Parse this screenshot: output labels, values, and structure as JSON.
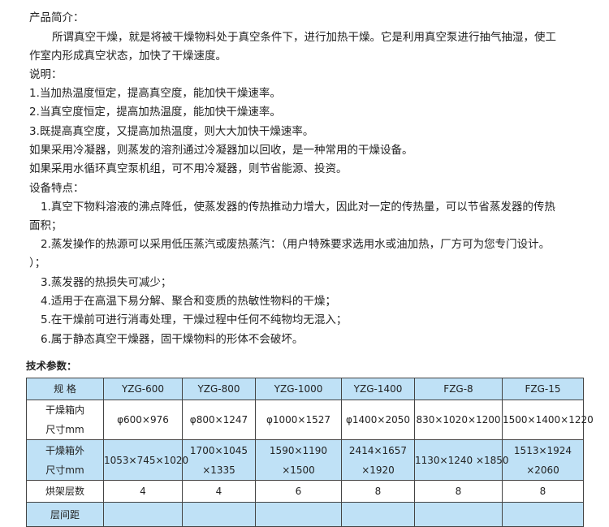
{
  "intro": {
    "title": "产品简介：",
    "para_line1": "所谓真空干燥，就是将被干燥物料处于真空条件下，进行加热干燥。它是利用真空泵进行抽气抽湿，使工",
    "para_line2": "作室内形成真空状态，加快了干燥速度。"
  },
  "notes": {
    "title": "说明：",
    "items": [
      "1.当加热温度恒定，提高真空度，能加快干燥速率。",
      "2.当真空度恒定，提高加热温度，能加快干燥速率。",
      "3.既提高真空度，又提高加热温度，则大大加快干燥速率。",
      "如果采用冷凝器，则蒸发的溶剂通过冷凝器加以回收，是一种常用的干燥设备。",
      "如果采用水循环真空泵机组，可不用冷凝器，则节省能源、投资。"
    ]
  },
  "features": {
    "title": "设备特点：",
    "lines": [
      "1.真空下物料溶液的沸点降低，使蒸发器的传热推动力增大，因此对一定的传热量，可以节省蒸发器的传热",
      "面积；",
      "2.蒸发操作的热源可以采用低压蒸汽或废热蒸汽：（用户特殊要求选用水或油加热，厂方可为您专门设计。",
      "）；",
      "3.蒸发器的热损失可减少；",
      "4.适用于在高温下易分解、聚合和变质的热敏性物料的干燥；",
      "5.在干燥前可进行消毒处理，干燥过程中任何不纯物均无混入；",
      "6.属于静态真空干燥器，固干燥物料的形体不会破坏。"
    ]
  },
  "specs": {
    "title": "技术参数：",
    "header": [
      "规 格",
      "YZG-600",
      "YZG-800",
      "YZG-1000",
      "YZG-1400",
      "FZG-8",
      "FZG-15"
    ],
    "rows": [
      {
        "label1": "干燥箱内",
        "label2": "尺寸mm",
        "cells": [
          [
            "φ600×976"
          ],
          [
            "φ800×1247"
          ],
          [
            "φ1000×1527"
          ],
          [
            "φ1400×2050"
          ],
          [
            "830×1020×1200"
          ],
          [
            "1500×1400×1220"
          ]
        ]
      },
      {
        "label1": "干燥箱外",
        "label2": "尺寸mm",
        "cells": [
          [
            "1053×745×1020"
          ],
          [
            "1700×1045",
            "×1335"
          ],
          [
            "1590×1190",
            "×1500"
          ],
          [
            "2414×1657",
            "×1920"
          ],
          [
            "1130×1240 ×1850"
          ],
          [
            "1513×1924",
            "×2060"
          ]
        ]
      },
      {
        "label1": "烘架层数",
        "cells": [
          [
            "4"
          ],
          [
            "4"
          ],
          [
            "6"
          ],
          [
            "8"
          ],
          [
            "8"
          ],
          [
            "8"
          ]
        ]
      },
      {
        "label1": "层间距",
        "cells": [
          [
            ""
          ],
          [
            ""
          ],
          [
            ""
          ],
          [
            ""
          ],
          [
            ""
          ],
          [
            ""
          ]
        ]
      }
    ],
    "colors": {
      "header_bg": "#bfe1f6",
      "border": "#444444"
    }
  }
}
